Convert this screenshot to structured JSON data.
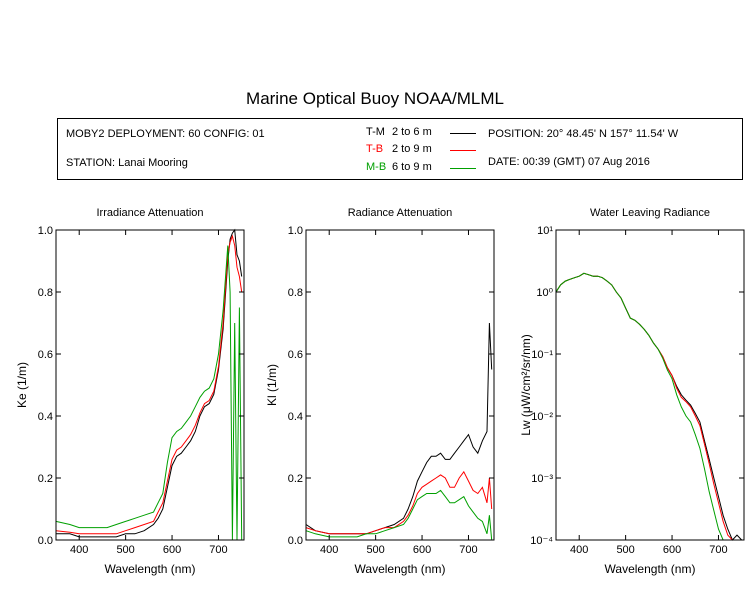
{
  "title": "Marine Optical Buoy NOAA/MLML",
  "info": {
    "deployment": "MOBY2 DEPLOYMENT: 60 CONFIG: 01",
    "station": "STATION: Lanai Mooring",
    "position": "POSITION: 20° 48.45' N   157° 11.54' W",
    "date": "DATE: 00:39 (GMT) 07 Aug 2016"
  },
  "legend": [
    {
      "code": "T-M",
      "range": "2 to 6  m",
      "color": "#000000"
    },
    {
      "code": "T-B",
      "range": "2 to 9  m",
      "color": "#ff0000"
    },
    {
      "code": "M-B",
      "range": "6 to 9  m",
      "color": "#00a000"
    }
  ],
  "chart_data": [
    {
      "type": "line",
      "title": "Irradiance Attenuation",
      "xlabel": "Wavelength (nm)",
      "ylabel": "Ke  (1/m)",
      "xlim": [
        350,
        755
      ],
      "ylim": [
        0,
        1.0
      ],
      "xticks": [
        "400",
        "500",
        "600",
        "700"
      ],
      "yticks": [
        "0.0",
        "0.2",
        "0.4",
        "0.6",
        "0.8",
        "1.0"
      ],
      "x": [
        350,
        380,
        400,
        430,
        460,
        480,
        500,
        520,
        540,
        560,
        570,
        580,
        590,
        600,
        610,
        620,
        630,
        640,
        650,
        660,
        670,
        680,
        690,
        700,
        710,
        720,
        725,
        730,
        735,
        740,
        745,
        750
      ],
      "series": [
        {
          "code": "T-M",
          "values": [
            0.02,
            0.02,
            0.01,
            0.01,
            0.01,
            0.01,
            0.02,
            0.02,
            0.03,
            0.05,
            0.07,
            0.1,
            0.17,
            0.24,
            0.27,
            0.28,
            0.3,
            0.32,
            0.35,
            0.4,
            0.43,
            0.44,
            0.47,
            0.55,
            0.68,
            0.9,
            0.97,
            0.99,
            1.0,
            0.92,
            0.9,
            0.85
          ]
        },
        {
          "code": "T-B",
          "values": [
            0.03,
            0.025,
            0.02,
            0.02,
            0.02,
            0.02,
            0.03,
            0.04,
            0.05,
            0.06,
            0.09,
            0.12,
            0.19,
            0.26,
            0.29,
            0.3,
            0.32,
            0.34,
            0.37,
            0.41,
            0.44,
            0.45,
            0.48,
            0.56,
            0.7,
            0.92,
            0.96,
            0.98,
            0.95,
            0.88,
            0.85,
            0.8
          ]
        },
        {
          "code": "M-B",
          "values": [
            0.06,
            0.05,
            0.04,
            0.04,
            0.04,
            0.05,
            0.06,
            0.07,
            0.08,
            0.09,
            0.12,
            0.15,
            0.25,
            0.33,
            0.35,
            0.36,
            0.38,
            0.4,
            0.43,
            0.46,
            0.48,
            0.49,
            0.52,
            0.6,
            0.74,
            0.95,
            0.8,
            0.0,
            0.7,
            0.0,
            0.75,
            0.0
          ]
        }
      ]
    },
    {
      "type": "line",
      "title": "Radiance Attenuation",
      "xlabel": "Wavelength (nm)",
      "ylabel": "Kl  (1/m)",
      "xlim": [
        350,
        755
      ],
      "ylim": [
        0,
        1.0
      ],
      "xticks": [
        "400",
        "500",
        "600",
        "700"
      ],
      "yticks": [
        "0.0",
        "0.2",
        "0.4",
        "0.6",
        "0.8",
        "1.0"
      ],
      "x": [
        350,
        370,
        400,
        430,
        460,
        480,
        500,
        520,
        540,
        560,
        570,
        580,
        590,
        600,
        610,
        620,
        630,
        640,
        650,
        660,
        670,
        680,
        690,
        700,
        710,
        720,
        730,
        740,
        745,
        750
      ],
      "series": [
        {
          "code": "T-M",
          "values": [
            0.05,
            0.03,
            0.02,
            0.02,
            0.02,
            0.02,
            0.03,
            0.04,
            0.05,
            0.07,
            0.1,
            0.14,
            0.19,
            0.22,
            0.25,
            0.27,
            0.27,
            0.28,
            0.26,
            0.26,
            0.28,
            0.3,
            0.32,
            0.34,
            0.3,
            0.28,
            0.32,
            0.35,
            0.7,
            0.55
          ]
        },
        {
          "code": "T-B",
          "values": [
            0.04,
            0.03,
            0.02,
            0.02,
            0.02,
            0.02,
            0.03,
            0.04,
            0.04,
            0.06,
            0.08,
            0.11,
            0.15,
            0.17,
            0.18,
            0.19,
            0.2,
            0.21,
            0.2,
            0.17,
            0.17,
            0.2,
            0.22,
            0.19,
            0.16,
            0.15,
            0.17,
            0.12,
            0.2,
            0.1
          ]
        },
        {
          "code": "M-B",
          "values": [
            0.03,
            0.02,
            0.01,
            0.01,
            0.01,
            0.02,
            0.02,
            0.03,
            0.04,
            0.05,
            0.07,
            0.1,
            0.13,
            0.14,
            0.15,
            0.15,
            0.15,
            0.16,
            0.14,
            0.12,
            0.12,
            0.13,
            0.14,
            0.11,
            0.09,
            0.07,
            0.06,
            0.02,
            0.08,
            0.0
          ]
        }
      ]
    },
    {
      "type": "line",
      "title": "Water Leaving Radiance",
      "xlabel": "Wavelength (nm)",
      "ylabel": "Lw  (μW/cm²/sr/nm)",
      "xlim": [
        350,
        755
      ],
      "log_y": true,
      "ylim": [
        0.0001,
        10
      ],
      "xticks": [
        "400",
        "500",
        "600",
        "700"
      ],
      "yticks": [
        "10⁻⁴",
        "10⁻³",
        "10⁻²",
        "10⁻¹",
        "10⁰",
        "10¹"
      ],
      "x": [
        350,
        360,
        370,
        380,
        390,
        400,
        410,
        420,
        430,
        440,
        450,
        460,
        470,
        480,
        490,
        500,
        510,
        520,
        530,
        540,
        550,
        560,
        570,
        580,
        590,
        600,
        610,
        620,
        630,
        640,
        650,
        660,
        670,
        680,
        690,
        700,
        710,
        720,
        730,
        740,
        750
      ],
      "series": [
        {
          "code": "T-M",
          "values": [
            1.0,
            1.3,
            1.5,
            1.6,
            1.7,
            1.8,
            2.0,
            1.9,
            1.8,
            1.8,
            1.7,
            1.5,
            1.3,
            1.0,
            0.8,
            0.55,
            0.38,
            0.35,
            0.3,
            0.25,
            0.2,
            0.15,
            0.12,
            0.09,
            0.06,
            0.045,
            0.03,
            0.022,
            0.018,
            0.015,
            0.011,
            0.008,
            0.004,
            0.002,
            0.001,
            0.0005,
            0.00025,
            0.00015,
            0.0001,
            0.00012,
            0.0001
          ]
        },
        {
          "code": "T-B",
          "values": [
            1.0,
            1.3,
            1.5,
            1.6,
            1.7,
            1.8,
            2.0,
            1.9,
            1.8,
            1.8,
            1.7,
            1.5,
            1.3,
            1.0,
            0.8,
            0.55,
            0.38,
            0.35,
            0.3,
            0.25,
            0.2,
            0.15,
            0.12,
            0.09,
            0.06,
            0.045,
            0.028,
            0.02,
            0.017,
            0.014,
            0.01,
            0.007,
            0.0035,
            0.0017,
            0.0008,
            0.0004,
            0.0002,
            0.00012,
            0.0001,
            0.0001,
            0.0001
          ]
        },
        {
          "code": "M-B",
          "values": [
            1.0,
            1.3,
            1.5,
            1.6,
            1.7,
            1.8,
            2.0,
            1.9,
            1.8,
            1.8,
            1.7,
            1.5,
            1.3,
            1.0,
            0.8,
            0.55,
            0.38,
            0.35,
            0.3,
            0.25,
            0.2,
            0.15,
            0.12,
            0.085,
            0.055,
            0.04,
            0.022,
            0.014,
            0.01,
            0.008,
            0.005,
            0.003,
            0.0014,
            0.0006,
            0.0003,
            0.00015,
            0.0001,
            0.0001,
            0.0001,
            0.0001,
            0.0001
          ]
        }
      ]
    }
  ]
}
